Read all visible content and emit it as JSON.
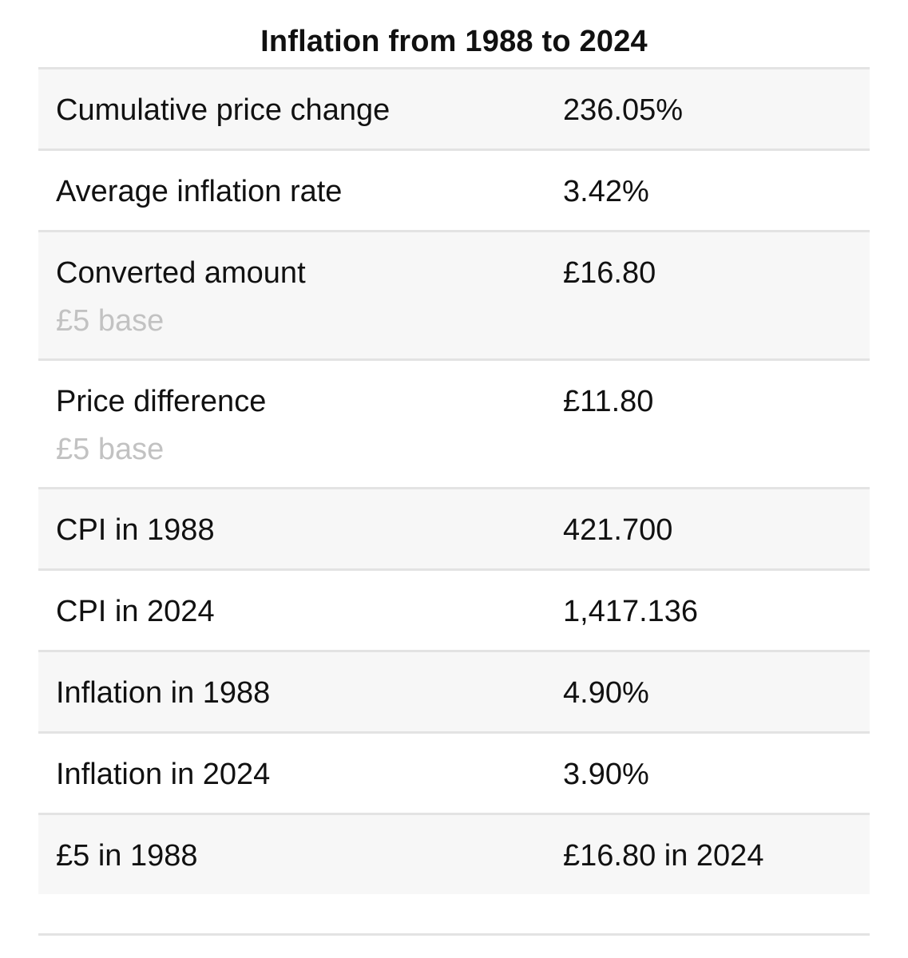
{
  "title": "Inflation from 1988 to 2024",
  "rows": [
    {
      "label": "Cumulative price change",
      "value": "236.05%"
    },
    {
      "label": "Average inflation rate",
      "value": "3.42%"
    },
    {
      "label": "Converted amount",
      "sublabel": "£5 base",
      "value": "£16.80"
    },
    {
      "label": "Price difference",
      "sublabel": "£5 base",
      "value": "£11.80"
    },
    {
      "label": "CPI in 1988",
      "value": "421.700"
    },
    {
      "label": "CPI in 2024",
      "value": "1,417.136"
    },
    {
      "label": "Inflation in 1988",
      "value": "4.90%"
    },
    {
      "label": "Inflation in 2024",
      "value": "3.90%"
    },
    {
      "label": "£5 in 1988",
      "value": "£16.80 in 2024"
    }
  ],
  "colors": {
    "row_shade": "#f7f7f7",
    "divider": "#e3e3e3",
    "sublabel_text": "#c2c2c2",
    "text": "#111111"
  }
}
